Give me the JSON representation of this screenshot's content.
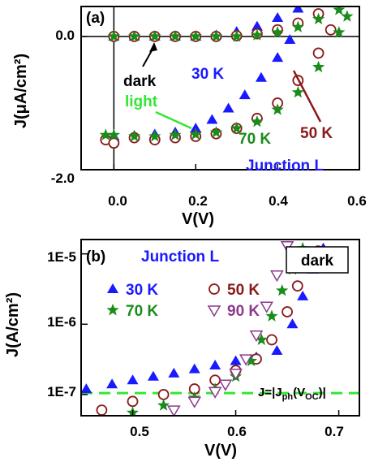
{
  "chart_data": [
    {
      "type": "scatter",
      "panel_label": "(a)",
      "xlabel": "V(V)",
      "ylabel": "J(μA/cm²)",
      "xlim": [
        -0.08,
        0.6
      ],
      "ylim": [
        -2.0,
        0.45
      ],
      "x_ticks": [
        "0.0",
        "0.2",
        "0.4",
        "0.6"
      ],
      "y_ticks": [
        "0.0",
        "-2.0"
      ],
      "annotations": {
        "dark": "dark",
        "light": "light",
        "t30": "30 K",
        "t70": "70 K",
        "t50": "50 K",
        "junction": "Junction L"
      },
      "series": [
        {
          "name": "dark 30 K",
          "marker": "triangle",
          "color": "#1a1aff",
          "x": [
            0.0,
            0.05,
            0.1,
            0.15,
            0.2,
            0.25,
            0.3,
            0.35,
            0.4,
            0.45
          ],
          "y": [
            0.0,
            0.0,
            0.0,
            0.0,
            0.0,
            0.02,
            0.07,
            0.15,
            0.28,
            0.42
          ]
        },
        {
          "name": "dark 50 K",
          "marker": "circle",
          "color": "#8b1a1a",
          "x": [
            0.0,
            0.05,
            0.1,
            0.15,
            0.2,
            0.25,
            0.3,
            0.35,
            0.4,
            0.45,
            0.5
          ],
          "y": [
            0.0,
            0.0,
            0.0,
            0.0,
            0.0,
            0.0,
            0.01,
            0.04,
            0.1,
            0.2,
            0.34
          ]
        },
        {
          "name": "dark 70 K",
          "marker": "star",
          "color": "#1a8c1a",
          "x": [
            0.0,
            0.05,
            0.1,
            0.15,
            0.2,
            0.25,
            0.3,
            0.35,
            0.4,
            0.45,
            0.5,
            0.55
          ],
          "y": [
            0.0,
            0.0,
            0.0,
            0.0,
            0.0,
            0.0,
            0.0,
            0.02,
            0.06,
            0.14,
            0.26,
            0.4
          ]
        },
        {
          "name": "light 30 K",
          "marker": "triangle",
          "color": "#1a1aff",
          "x": [
            0.0,
            0.05,
            0.1,
            0.15,
            0.2,
            0.24,
            0.28,
            0.32,
            0.36,
            0.4,
            0.43
          ],
          "y": [
            -1.5,
            -1.49,
            -1.47,
            -1.44,
            -1.38,
            -1.25,
            -1.08,
            -0.88,
            -0.62,
            -0.32,
            -0.05
          ]
        },
        {
          "name": "light 50 K",
          "marker": "circle",
          "color": "#8b1a1a",
          "x": [
            -0.02,
            0.0,
            0.05,
            0.1,
            0.15,
            0.2,
            0.25,
            0.3,
            0.35,
            0.4,
            0.45,
            0.5,
            0.53
          ],
          "y": [
            -1.55,
            -1.6,
            -1.52,
            -1.55,
            -1.52,
            -1.5,
            -1.46,
            -1.38,
            -1.23,
            -1.0,
            -0.66,
            -0.25,
            0.1
          ]
        },
        {
          "name": "light 70 K",
          "marker": "star",
          "color": "#1a8c1a",
          "x": [
            -0.02,
            0.0,
            0.05,
            0.1,
            0.15,
            0.2,
            0.25,
            0.3,
            0.35,
            0.4,
            0.45,
            0.5,
            0.55,
            0.57
          ],
          "y": [
            -1.48,
            -1.48,
            -1.5,
            -1.5,
            -1.48,
            -1.47,
            -1.44,
            -1.38,
            -1.28,
            -1.1,
            -0.84,
            -0.46,
            0.06,
            0.3
          ]
        }
      ]
    },
    {
      "type": "scatter",
      "panel_label": "(b)",
      "xlabel": "V(V)",
      "ylabel": "J(A/cm²)",
      "xlim": [
        0.45,
        0.72
      ],
      "ylim": [
        5e-08,
        1.6e-05
      ],
      "yscale": "log",
      "x_ticks": [
        "0.5",
        "0.6",
        "0.7"
      ],
      "y_ticks": [
        "1E-5",
        "1E-6",
        "1E-7"
      ],
      "annotations": {
        "junction": "Junction L",
        "dark": "dark",
        "ref_line": "J=|J",
        "ref_sub_ph": "ph",
        "ref_mid": "(V",
        "ref_sub_oc": "OC",
        "ref_end": ")|"
      },
      "legend": [
        "30 K",
        "50 K",
        "70 K",
        "90 K"
      ],
      "reference_line_y": 1.05e-07,
      "series": [
        {
          "name": "30 K",
          "marker": "triangle",
          "color": "#1a1aff",
          "x": [
            0.455,
            0.48,
            0.5,
            0.52,
            0.54,
            0.56,
            0.58,
            0.6,
            0.62,
            0.64,
            0.655,
            0.665,
            0.675,
            0.685
          ],
          "y": [
            1.2e-07,
            1.4e-07,
            1.6e-07,
            1.8e-07,
            2e-07,
            2.3e-07,
            2.6e-07,
            3e-07,
            3.4e-07,
            4.2e-07,
            1e-06,
            2.5e-06,
            6e-06,
            1.2e-05
          ]
        },
        {
          "name": "50 K",
          "marker": "circle",
          "color": "#8b1a1a",
          "x": [
            0.47,
            0.5,
            0.53,
            0.56,
            0.58,
            0.6,
            0.62,
            0.635,
            0.65,
            0.66,
            0.67,
            0.68
          ],
          "y": [
            6e-08,
            8e-08,
            1e-07,
            1.2e-07,
            1.6e-07,
            2.2e-07,
            3.2e-07,
            6e-07,
            1.5e-06,
            3.5e-06,
            7e-06,
            1.1e-05
          ]
        },
        {
          "name": "70 K",
          "marker": "star",
          "color": "#1a8c1a",
          "x": [
            0.5,
            0.53,
            0.56,
            0.58,
            0.6,
            0.615,
            0.625,
            0.635,
            0.645,
            0.655,
            0.665
          ],
          "y": [
            5.5e-08,
            7e-08,
            9e-08,
            1.2e-07,
            1.8e-07,
            3e-07,
            6e-07,
            1.3e-06,
            3e-06,
            6e-06,
            1.2e-05
          ]
        },
        {
          "name": "90 K",
          "marker": "triangle-down",
          "color": "#8b3a8b",
          "x": [
            0.54,
            0.56,
            0.58,
            0.59,
            0.6,
            0.61,
            0.62,
            0.63,
            0.64,
            0.65
          ],
          "y": [
            6e-08,
            8e-08,
            1.1e-07,
            1.4e-07,
            2e-07,
            3.2e-07,
            7e-07,
            1.8e-06,
            5e-06,
            1.3e-05
          ]
        }
      ]
    }
  ]
}
